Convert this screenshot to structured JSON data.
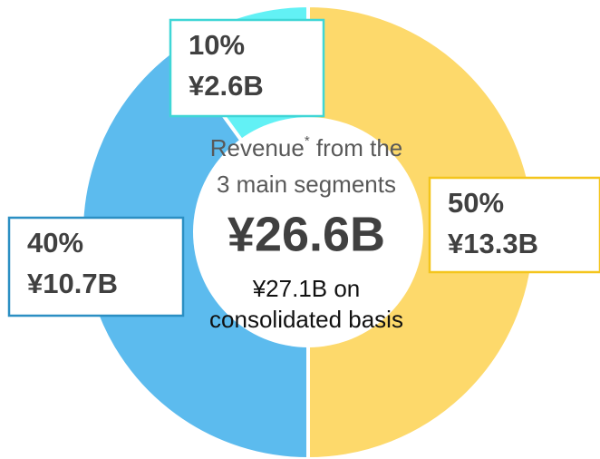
{
  "chart_data": {
    "type": "donut",
    "values": [
      50,
      40,
      10
    ],
    "value_labels": [
      "50%",
      "40%",
      "10%"
    ],
    "amount_labels": [
      "¥13.3B",
      "¥10.7B",
      "¥2.6B"
    ],
    "colors": [
      "#fdd96b",
      "#5cbbee",
      "#62f1f5"
    ],
    "border_colors": [
      "#f4c51c",
      "#2b8fc3",
      "#3fd6d6"
    ],
    "center": {
      "label": "Revenue",
      "footnote_mark": "*",
      "label_rest": " from the",
      "label_line2": "3 main segments",
      "total": "¥26.6B",
      "note_line1": "¥27.1B on",
      "note_line2": "consolidated basis"
    }
  }
}
